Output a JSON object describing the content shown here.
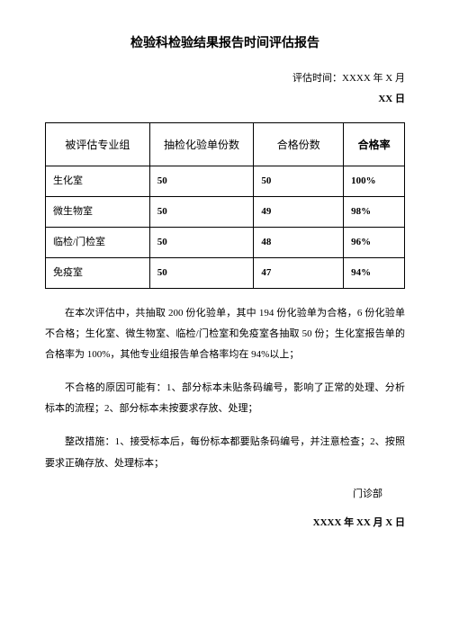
{
  "title": "检验科检验结果报告时间评估报告",
  "meta": {
    "time_label": "评估时间：XXXX 年 X 月",
    "day": "XX 日"
  },
  "table": {
    "headers": [
      "被评估专业组",
      "抽检化验单份数",
      "合格份数",
      "合格率"
    ],
    "rows": [
      [
        "生化室",
        "50",
        "50",
        "100%"
      ],
      [
        "微生物室",
        "50",
        "49",
        "98%"
      ],
      [
        "临检/门检室",
        "50",
        "48",
        "96%"
      ],
      [
        "免疫室",
        "50",
        "47",
        "94%"
      ]
    ]
  },
  "paragraphs": {
    "p1": "在本次评估中，共抽取 200 份化验单，其中 194 份化验单为合格，6 份化验单不合格；生化室、微生物室、临检/门检室和免疫室各抽取 50 份；生化室报告单的合格率为 100%，其他专业组报告单合格率均在 94%以上；",
    "p2": "不合格的原因可能有：1、部分标本未贴条码编号，影响了正常的处理、分析标本的流程；2、部分标本未按要求存放、处理；",
    "p3": "整改措施：1、接受标本后，每份标本都要贴条码编号，并注意检查；2、按照要求正确存放、处理标本；"
  },
  "signature": {
    "dept": "门诊部",
    "date": "XXXX 年 XX 月 X 日"
  }
}
